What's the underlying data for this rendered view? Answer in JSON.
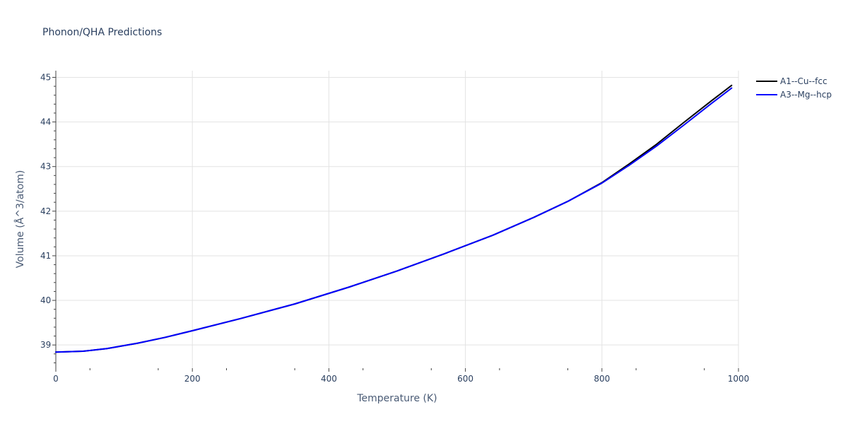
{
  "chart_data": {
    "type": "line",
    "title": "Phonon/QHA Predictions",
    "xlabel": "Temperature (K)",
    "ylabel": "Volume (Å^3/atom)",
    "xlim": [
      0,
      1000
    ],
    "ylim": [
      38.48,
      45.15
    ],
    "x_ticks": [
      0,
      200,
      400,
      600,
      800,
      1000
    ],
    "y_ticks": [
      39,
      40,
      41,
      42,
      43,
      44,
      45
    ],
    "x_tick_labels": [
      "0",
      "200",
      "400",
      "600",
      "800",
      "1000"
    ],
    "y_tick_labels": [
      "39",
      "40",
      "41",
      "42",
      "43",
      "44",
      "45"
    ],
    "grid": true,
    "legend_position": "top-right",
    "series": [
      {
        "name": "A1--Cu--fcc",
        "color": "#000000",
        "x": [
          0,
          40,
          75,
          120,
          160,
          200,
          270,
          350,
          430,
          500,
          570,
          640,
          700,
          750,
          800,
          840,
          880,
          920,
          960,
          990
        ],
        "y": [
          38.84,
          38.86,
          38.92,
          39.04,
          39.17,
          39.32,
          39.59,
          39.92,
          40.3,
          40.66,
          41.05,
          41.46,
          41.86,
          42.22,
          42.64,
          43.06,
          43.5,
          43.99,
          44.47,
          44.82
        ]
      },
      {
        "name": "A3--Mg--hcp",
        "color": "#0000ff",
        "x": [
          0,
          40,
          75,
          120,
          160,
          200,
          270,
          350,
          430,
          500,
          570,
          640,
          700,
          750,
          800,
          840,
          880,
          920,
          960,
          990
        ],
        "y": [
          38.84,
          38.86,
          38.92,
          39.04,
          39.17,
          39.32,
          39.59,
          39.92,
          40.3,
          40.66,
          41.05,
          41.46,
          41.86,
          42.22,
          42.63,
          43.03,
          43.46,
          43.93,
          44.41,
          44.76
        ]
      }
    ]
  }
}
